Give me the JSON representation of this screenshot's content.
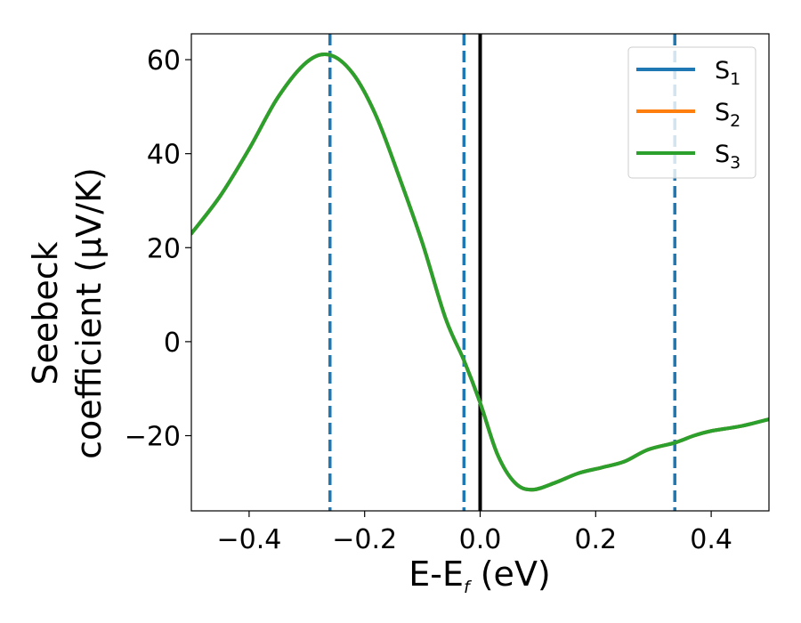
{
  "chart_data": {
    "type": "line",
    "xlabel_main": "E-E",
    "xlabel_sub": "f",
    "xlabel_unit": " (eV)",
    "ylabel_line1": "Seebeck",
    "ylabel_line2": "coefficient  (μV/K)",
    "xlim": [
      -0.5,
      0.5
    ],
    "ylim": [
      -36,
      65.5
    ],
    "xticks": [
      -0.4,
      -0.2,
      0.0,
      0.2,
      0.4
    ],
    "xtick_labels": [
      "−0.4",
      "−0.2",
      "0.0",
      "0.2",
      "0.4"
    ],
    "yticks": [
      -20,
      0,
      20,
      40,
      60
    ],
    "ytick_labels": [
      "−20",
      "0",
      "20",
      "40",
      "60"
    ],
    "legend_position": "top-right",
    "vlines": [
      {
        "x": -0.26,
        "style": "dashed",
        "color": "#1f77b4"
      },
      {
        "x": -0.028,
        "style": "dashed",
        "color": "#1f77b4"
      },
      {
        "x": 0.337,
        "style": "dashed",
        "color": "#1f77b4"
      },
      {
        "x": 0.0,
        "style": "solid",
        "color": "#000000"
      }
    ],
    "x": [
      -0.5,
      -0.45,
      -0.4,
      -0.35,
      -0.3,
      -0.26,
      -0.22,
      -0.18,
      -0.14,
      -0.1,
      -0.06,
      -0.028,
      0.0,
      0.03,
      0.06,
      0.09,
      0.13,
      0.17,
      0.21,
      0.25,
      0.29,
      0.337,
      0.37,
      0.4,
      0.45,
      0.5
    ],
    "series": [
      {
        "name": "S",
        "sub": "1",
        "color": "#1f77b4",
        "values": [
          23,
          31,
          41,
          52,
          59.5,
          61,
          57,
          48,
          35,
          21,
          5,
          -4,
          -13,
          -24,
          -30,
          -31.5,
          -30,
          -28,
          -26.8,
          -25.5,
          -23,
          -21.5,
          -20,
          -19,
          -18,
          -16.5
        ]
      },
      {
        "name": "S",
        "sub": "2",
        "color": "#ff7f0e",
        "values": [
          23,
          31,
          41,
          52,
          59.5,
          61,
          57,
          48,
          35,
          21,
          5,
          -4,
          -13,
          -24,
          -30,
          -31.5,
          -30,
          -28,
          -26.8,
          -25.5,
          -23,
          -21.5,
          -20,
          -19,
          -18,
          -16.5
        ]
      },
      {
        "name": "S",
        "sub": "3",
        "color": "#2ca02c",
        "values": [
          23,
          31,
          41,
          52,
          59.5,
          61,
          57,
          48,
          35,
          21,
          5,
          -4,
          -13,
          -24,
          -30,
          -31.5,
          -30,
          -28,
          -26.8,
          -25.5,
          -23,
          -21.5,
          -20,
          -19,
          -18,
          -16.5
        ]
      }
    ]
  }
}
